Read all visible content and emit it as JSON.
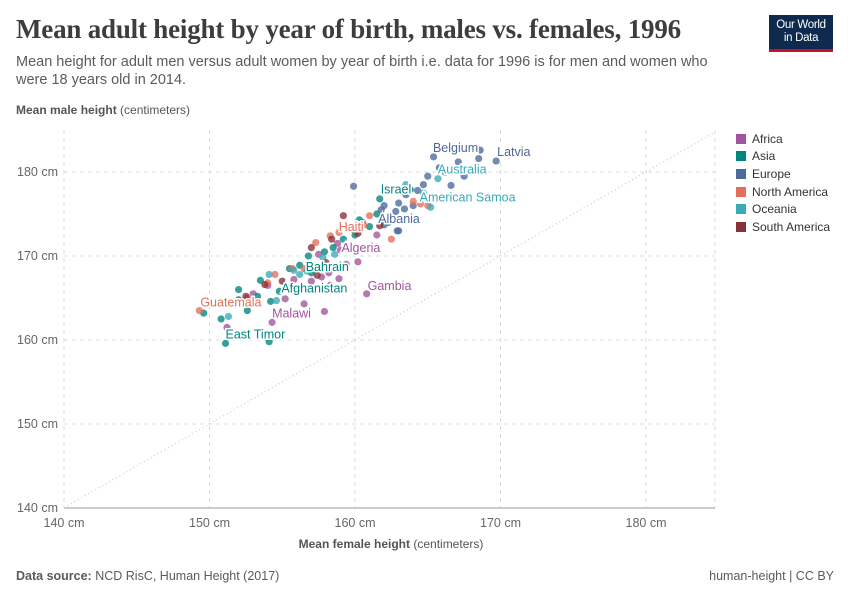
{
  "header": {
    "title": "Mean adult height by year of birth, males vs. females, 1996",
    "subtitle": "Mean height for adult men versus adult women by year of birth i.e. data for 1996 is for men and women who were 18 years old in 2014.",
    "logo": "Our World in Data"
  },
  "footer": {
    "source_label": "Data source:",
    "source": "NCD RisC, Human Height (2017)",
    "right": "human-height | CC BY"
  },
  "colors": {
    "Africa": "#a2559c",
    "Asia": "#00847e",
    "Europe": "#4c6a9c",
    "North America": "#e56e5a",
    "Oceania": "#38aaba",
    "South America": "#883039"
  },
  "chart_data": {
    "type": "scatter",
    "title": "Mean adult height by year of birth, males vs. females, 1996",
    "xlabel_bold": "Mean female height",
    "xlabel_unit": "(centimeters)",
    "ylabel_bold": "Mean male height",
    "ylabel_unit": "(centimeters)",
    "xlim": [
      139.5,
      184.7
    ],
    "ylim": [
      140,
      184.5
    ],
    "xticks": [
      140,
      150,
      160,
      170,
      180
    ],
    "yticks": [
      140,
      150,
      160,
      170,
      180
    ],
    "tick_suffix": " cm",
    "grid": true,
    "reference_line": "y = x",
    "legend_position": "right",
    "legend": [
      "Africa",
      "Asia",
      "Europe",
      "North America",
      "Oceania",
      "South America"
    ],
    "points": [
      [
        151.2,
        161.5,
        "Africa",
        ""
      ],
      [
        154.3,
        162.1,
        "Africa",
        "Malawi"
      ],
      [
        157.9,
        163.4,
        "Africa",
        ""
      ],
      [
        155.2,
        164.9,
        "Africa",
        ""
      ],
      [
        156.5,
        164.3,
        "Africa",
        ""
      ],
      [
        157.0,
        167.0,
        "Africa",
        ""
      ],
      [
        157.7,
        167.5,
        "Africa",
        ""
      ],
      [
        158.2,
        168.0,
        "Africa",
        ""
      ],
      [
        158.9,
        167.3,
        "Africa",
        ""
      ],
      [
        159.4,
        169.0,
        "Africa",
        ""
      ],
      [
        160.2,
        169.3,
        "Africa",
        ""
      ],
      [
        160.8,
        165.5,
        "Africa",
        "Gambia"
      ],
      [
        159.0,
        170.7,
        "Africa",
        "Algeria"
      ],
      [
        157.5,
        170.2,
        "Africa",
        ""
      ],
      [
        158.3,
        166.5,
        "Africa",
        ""
      ],
      [
        156.0,
        166.0,
        "Africa",
        ""
      ],
      [
        153.0,
        165.5,
        "Africa",
        ""
      ],
      [
        154.0,
        166.5,
        "Africa",
        ""
      ],
      [
        161.5,
        172.5,
        "Africa",
        ""
      ],
      [
        158.8,
        171.5,
        "Africa",
        ""
      ],
      [
        157.2,
        168.6,
        "Africa",
        ""
      ],
      [
        155.8,
        167.2,
        "Africa",
        ""
      ],
      [
        151.1,
        159.6,
        "Asia",
        "East Timor"
      ],
      [
        154.1,
        159.8,
        "Asia",
        ""
      ],
      [
        150.8,
        162.5,
        "Asia",
        ""
      ],
      [
        149.6,
        163.2,
        "Asia",
        ""
      ],
      [
        152.6,
        163.5,
        "Asia",
        ""
      ],
      [
        152.0,
        164.8,
        "Asia",
        ""
      ],
      [
        153.3,
        165.2,
        "Asia",
        ""
      ],
      [
        154.2,
        164.6,
        "Asia",
        ""
      ],
      [
        154.8,
        165.8,
        "Asia",
        "Afghanistan"
      ],
      [
        155.5,
        166.0,
        "Asia",
        ""
      ],
      [
        156.2,
        168.9,
        "Asia",
        "Bahrain"
      ],
      [
        157.0,
        168.0,
        "Asia",
        ""
      ],
      [
        155.5,
        168.5,
        "Asia",
        ""
      ],
      [
        157.9,
        170.5,
        "Asia",
        ""
      ],
      [
        158.5,
        171.0,
        "Asia",
        ""
      ],
      [
        159.2,
        172.0,
        "Asia",
        ""
      ],
      [
        160.0,
        172.5,
        "Asia",
        ""
      ],
      [
        161.0,
        173.5,
        "Asia",
        ""
      ],
      [
        161.5,
        175.0,
        "Asia",
        ""
      ],
      [
        161.7,
        176.8,
        "Asia",
        ""
      ],
      [
        163.8,
        177.9,
        "Asia",
        "Israel"
      ],
      [
        162.3,
        174.0,
        "Asia",
        ""
      ],
      [
        160.3,
        174.3,
        "Asia",
        ""
      ],
      [
        156.8,
        170.0,
        "Asia",
        ""
      ],
      [
        153.5,
        167.1,
        "Asia",
        ""
      ],
      [
        152.0,
        166.0,
        "Asia",
        ""
      ],
      [
        169.7,
        181.3,
        "Europe",
        "Latvia"
      ],
      [
        168.6,
        182.6,
        "Europe",
        "Belgium"
      ],
      [
        168.5,
        181.6,
        "Europe",
        ""
      ],
      [
        167.1,
        181.2,
        "Europe",
        ""
      ],
      [
        165.4,
        181.8,
        "Europe",
        ""
      ],
      [
        165.8,
        180.5,
        "Europe",
        ""
      ],
      [
        166.2,
        180.0,
        "Europe",
        ""
      ],
      [
        167.5,
        179.5,
        "Europe",
        ""
      ],
      [
        166.6,
        178.4,
        "Europe",
        ""
      ],
      [
        165.0,
        179.5,
        "Europe",
        ""
      ],
      [
        164.7,
        178.5,
        "Europe",
        ""
      ],
      [
        164.3,
        177.8,
        "Europe",
        ""
      ],
      [
        163.5,
        177.3,
        "Europe",
        ""
      ],
      [
        163.0,
        176.3,
        "Europe",
        ""
      ],
      [
        162.8,
        175.3,
        "Europe",
        ""
      ],
      [
        163.4,
        175.6,
        "Europe",
        ""
      ],
      [
        163.0,
        173.0,
        "Europe",
        ""
      ],
      [
        162.0,
        173.7,
        "Europe",
        ""
      ],
      [
        162.9,
        173.0,
        "Europe",
        "Albania"
      ],
      [
        159.9,
        178.3,
        "Europe",
        ""
      ],
      [
        164.0,
        176.0,
        "Europe",
        ""
      ],
      [
        162.0,
        176.0,
        "Europe",
        ""
      ],
      [
        161.8,
        175.5,
        "Europe",
        ""
      ],
      [
        160.5,
        174.0,
        "Europe",
        ""
      ],
      [
        149.3,
        163.5,
        "North America",
        "Guatemala"
      ],
      [
        152.6,
        165.0,
        "North America",
        ""
      ],
      [
        154.0,
        166.8,
        "North America",
        ""
      ],
      [
        154.5,
        167.8,
        "North America",
        ""
      ],
      [
        155.7,
        168.5,
        "North America",
        ""
      ],
      [
        156.5,
        168.5,
        "North America",
        ""
      ],
      [
        157.3,
        171.6,
        "North America",
        ""
      ],
      [
        158.3,
        172.4,
        "North America",
        ""
      ],
      [
        158.9,
        172.8,
        "North America",
        ""
      ],
      [
        160.6,
        173.7,
        "North America",
        "Haiti"
      ],
      [
        161.0,
        174.8,
        "North America",
        ""
      ],
      [
        162.5,
        172.0,
        "North America",
        ""
      ],
      [
        164.5,
        176.2,
        "North America",
        ""
      ],
      [
        165.0,
        176.0,
        "North America",
        ""
      ],
      [
        164.0,
        176.5,
        "North America",
        ""
      ],
      [
        151.3,
        162.8,
        "Oceania",
        ""
      ],
      [
        154.1,
        167.8,
        "Oceania",
        ""
      ],
      [
        155.8,
        168.3,
        "Oceania",
        ""
      ],
      [
        156.2,
        167.8,
        "Oceania",
        ""
      ],
      [
        157.8,
        169.8,
        "Oceania",
        ""
      ],
      [
        158.6,
        170.2,
        "Oceania",
        ""
      ],
      [
        165.7,
        179.2,
        "Oceania",
        "Australia"
      ],
      [
        165.2,
        175.8,
        "Oceania",
        "American Samoa"
      ],
      [
        164.7,
        177.5,
        "Oceania",
        ""
      ],
      [
        163.5,
        178.5,
        "Oceania",
        ""
      ],
      [
        156.7,
        168.2,
        "Oceania",
        ""
      ],
      [
        154.6,
        164.7,
        "Oceania",
        ""
      ],
      [
        152.5,
        165.2,
        "South America",
        ""
      ],
      [
        153.8,
        166.6,
        "South America",
        ""
      ],
      [
        155.0,
        167.0,
        "South America",
        ""
      ],
      [
        157.4,
        167.7,
        "South America",
        ""
      ],
      [
        158.0,
        169.2,
        "South America",
        ""
      ],
      [
        159.2,
        174.8,
        "South America",
        ""
      ],
      [
        159.8,
        173.2,
        "South America",
        ""
      ],
      [
        160.2,
        172.7,
        "South America",
        ""
      ],
      [
        161.7,
        173.6,
        "South America",
        ""
      ],
      [
        158.4,
        172.0,
        "South America",
        ""
      ],
      [
        157.0,
        171.0,
        "South America",
        ""
      ]
    ]
  }
}
